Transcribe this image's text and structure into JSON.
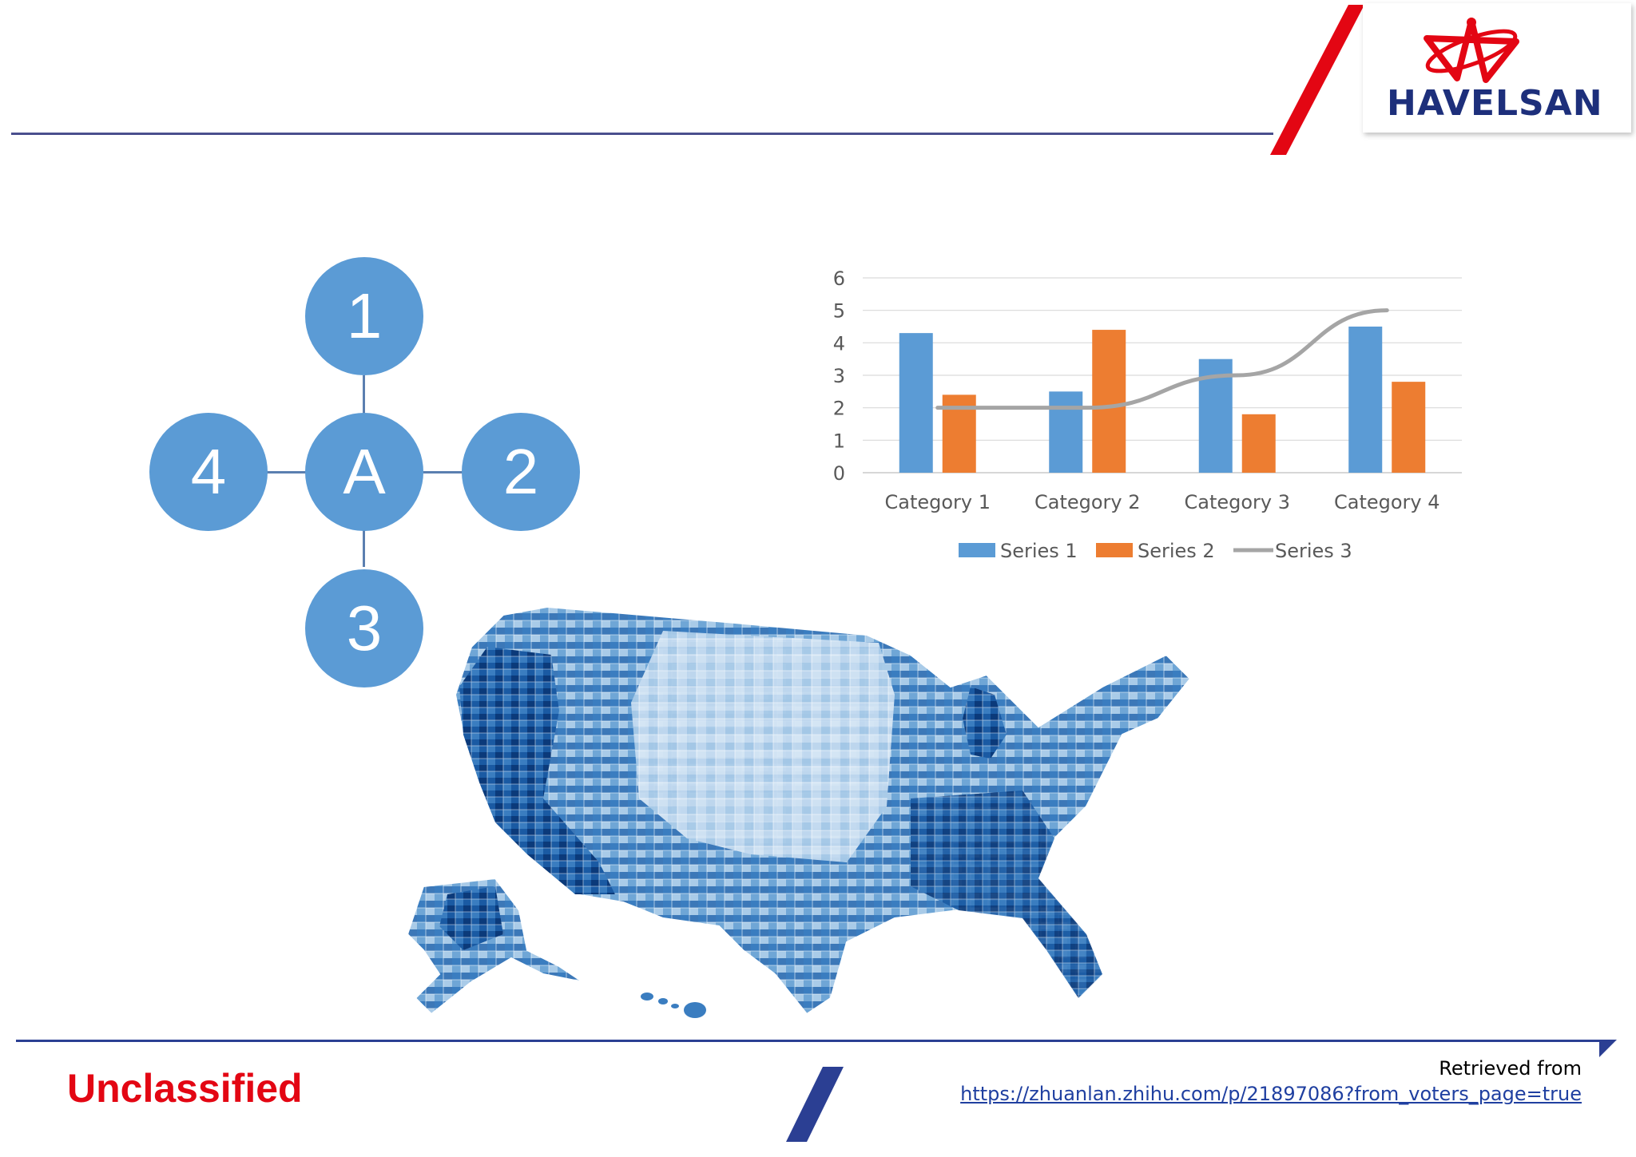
{
  "header": {
    "logo_text": "HAVELSAN",
    "colors": {
      "brand_red": "#e30613",
      "brand_blue": "#1d2f7b",
      "rule": "#4a4f8e"
    }
  },
  "diagram": {
    "center": "A",
    "top": "1",
    "right": "2",
    "bottom": "3",
    "left": "4",
    "node_color": "#5b9bd5"
  },
  "chart_data": {
    "type": "bar",
    "categories": [
      "Category 1",
      "Category 2",
      "Category 3",
      "Category 4"
    ],
    "series": [
      {
        "name": "Series 1",
        "kind": "bar",
        "color": "#5b9bd5",
        "values": [
          4.3,
          2.5,
          3.5,
          4.5
        ]
      },
      {
        "name": "Series 2",
        "kind": "bar",
        "color": "#ed7d31",
        "values": [
          2.4,
          4.4,
          1.8,
          2.8
        ]
      },
      {
        "name": "Series 3",
        "kind": "line",
        "color": "#a5a5a5",
        "values": [
          2,
          2,
          3,
          5
        ]
      }
    ],
    "yticks": [
      "0",
      "1",
      "2",
      "3",
      "4",
      "5",
      "6"
    ],
    "ylim": [
      0,
      6
    ],
    "grid": true,
    "legend": "bottom",
    "title": "",
    "xlabel": "",
    "ylabel": ""
  },
  "map": {
    "description_name": "us-county-choropleth",
    "palette": [
      "#d6e6f5",
      "#a9cbe8",
      "#6fa6d6",
      "#3a7dc0",
      "#1a5aa3",
      "#0b3a7a"
    ]
  },
  "footer": {
    "classification": "Unclassified",
    "source_label": "Retrieved from",
    "source_url": "https://zhuanlan.zhihu.com/p/21897086?from_voters_page=true"
  }
}
